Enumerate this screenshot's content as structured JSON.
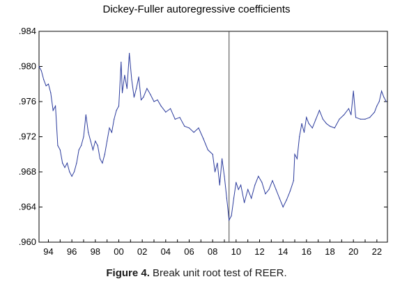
{
  "chart_data": {
    "type": "line",
    "title": "Dickey-Fuller autoregressive coefficients",
    "xlabel": "",
    "ylabel": "",
    "x_tick_labels": [
      "94",
      "96",
      "98",
      "00",
      "02",
      "04",
      "06",
      "08",
      "10",
      "12",
      "14",
      "16",
      "18",
      "20",
      "22"
    ],
    "y_tick_labels": [
      ".960",
      ".964",
      ".968",
      ".972",
      ".976",
      ".980",
      ".984"
    ],
    "xlim": [
      1993.2,
      2022.9
    ],
    "ylim": [
      0.96,
      0.984
    ],
    "grid": false,
    "break_line_x": 2009.4,
    "line_color": "#2a3a9c",
    "series": [
      {
        "x": [
          1993.2,
          1993.4,
          1993.6,
          1993.8,
          1994.0,
          1994.2,
          1994.4,
          1994.6,
          1994.8,
          1995.0,
          1995.2,
          1995.4,
          1995.6,
          1995.8,
          1996.0,
          1996.2,
          1996.4,
          1996.6,
          1996.8,
          1997.0,
          1997.2,
          1997.4,
          1997.6,
          1997.8,
          1998.0,
          1998.2,
          1998.4,
          1998.6,
          1998.8,
          1999.0,
          1999.2,
          1999.4,
          1999.6,
          1999.8,
          2000.0,
          2000.2,
          2000.3,
          2000.5,
          2000.7,
          2000.9,
          2001.1,
          2001.3,
          2001.5,
          2001.7,
          2001.9,
          2002.1,
          2002.4,
          2002.7,
          2003.0,
          2003.3,
          2003.6,
          2004.0,
          2004.4,
          2004.8,
          2005.2,
          2005.6,
          2006.0,
          2006.4,
          2006.8,
          2007.2,
          2007.6,
          2008.0,
          2008.2,
          2008.4,
          2008.6,
          2008.8,
          2009.0,
          2009.2,
          2009.4,
          2009.6,
          2009.8,
          2010.0,
          2010.2,
          2010.4,
          2010.7,
          2011.0,
          2011.3,
          2011.6,
          2011.9,
          2012.2,
          2012.5,
          2012.8,
          2013.1,
          2013.4,
          2013.7,
          2014.0,
          2014.3,
          2014.6,
          2014.9,
          2015.0,
          2015.2,
          2015.4,
          2015.6,
          2015.8,
          2016.0,
          2016.2,
          2016.5,
          2016.8,
          2017.1,
          2017.4,
          2017.7,
          2018.0,
          2018.4,
          2018.8,
          2019.2,
          2019.6,
          2019.8,
          2020.0,
          2020.2,
          2020.6,
          2021.0,
          2021.4,
          2021.8,
          2022.0,
          2022.2,
          2022.4,
          2022.6,
          2022.8
        ],
        "values": [
          0.98,
          0.9795,
          0.9785,
          0.9778,
          0.978,
          0.977,
          0.975,
          0.9755,
          0.971,
          0.9705,
          0.969,
          0.9685,
          0.969,
          0.968,
          0.9675,
          0.968,
          0.969,
          0.9705,
          0.971,
          0.972,
          0.9745,
          0.9725,
          0.9715,
          0.9705,
          0.9715,
          0.971,
          0.9695,
          0.969,
          0.97,
          0.9715,
          0.973,
          0.9725,
          0.974,
          0.975,
          0.9755,
          0.9805,
          0.977,
          0.979,
          0.9775,
          0.9815,
          0.9785,
          0.9765,
          0.9775,
          0.9788,
          0.9762,
          0.9765,
          0.9775,
          0.9768,
          0.976,
          0.9762,
          0.9755,
          0.9748,
          0.9752,
          0.974,
          0.9742,
          0.9732,
          0.973,
          0.9725,
          0.973,
          0.9718,
          0.9705,
          0.97,
          0.968,
          0.969,
          0.9665,
          0.9695,
          0.9675,
          0.965,
          0.9625,
          0.963,
          0.965,
          0.9668,
          0.966,
          0.9665,
          0.9645,
          0.966,
          0.965,
          0.9665,
          0.9675,
          0.9668,
          0.9655,
          0.966,
          0.967,
          0.966,
          0.965,
          0.964,
          0.9648,
          0.9658,
          0.967,
          0.97,
          0.9695,
          0.972,
          0.9735,
          0.9725,
          0.9742,
          0.9735,
          0.973,
          0.974,
          0.975,
          0.974,
          0.9735,
          0.9732,
          0.973,
          0.974,
          0.9745,
          0.9752,
          0.9745,
          0.9772,
          0.9742,
          0.974,
          0.974,
          0.9742,
          0.9748,
          0.9755,
          0.976,
          0.9772,
          0.9765,
          0.976
        ]
      }
    ]
  },
  "caption": {
    "label": "Figure 4.",
    "text": " Break unit root test of REER."
  }
}
